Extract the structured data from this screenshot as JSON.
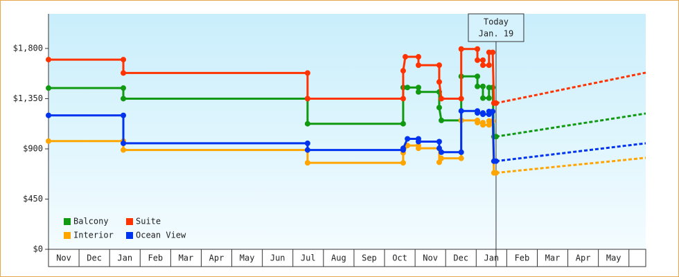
{
  "chart_data": {
    "type": "line",
    "xlim": [
      0,
      19.55
    ],
    "ylim": [
      0,
      2110
    ],
    "yticks": [
      {
        "value": 0,
        "label": "$0"
      },
      {
        "value": 450,
        "label": "$450"
      },
      {
        "value": 900,
        "label": "$900"
      },
      {
        "value": 1350,
        "label": "$1,350"
      },
      {
        "value": 1800,
        "label": "$1,800"
      }
    ],
    "xticks": [
      {
        "value": 0.5,
        "label": "Nov"
      },
      {
        "value": 1.5,
        "label": "Dec"
      },
      {
        "value": 2.5,
        "label": "Jan"
      },
      {
        "value": 3.5,
        "label": "Feb"
      },
      {
        "value": 4.5,
        "label": "Mar"
      },
      {
        "value": 5.5,
        "label": "Apr"
      },
      {
        "value": 6.5,
        "label": "May"
      },
      {
        "value": 7.5,
        "label": "Jun"
      },
      {
        "value": 8.5,
        "label": "Jul"
      },
      {
        "value": 9.5,
        "label": "Aug"
      },
      {
        "value": 10.5,
        "label": "Sep"
      },
      {
        "value": 11.5,
        "label": "Oct"
      },
      {
        "value": 12.5,
        "label": "Nov"
      },
      {
        "value": 13.5,
        "label": "Dec"
      },
      {
        "value": 14.5,
        "label": "Jan"
      },
      {
        "value": 15.5,
        "label": "Feb"
      },
      {
        "value": 16.5,
        "label": "Mar"
      },
      {
        "value": 17.5,
        "label": "Apr"
      },
      {
        "value": 18.5,
        "label": "May"
      }
    ],
    "annotation": {
      "x": 14.65,
      "lines": [
        "Today",
        "Jan. 19"
      ]
    },
    "legend": "lower left",
    "series": [
      {
        "name": "Balcony",
        "color": "#119911",
        "x": [
          0,
          2.45,
          2.45,
          8.48,
          8.48,
          11.61,
          11.61,
          11.75,
          12.11,
          12.11,
          12.79,
          12.79,
          12.86,
          13.51,
          13.51,
          14.04,
          14.04,
          14.22,
          14.22,
          14.42,
          14.42,
          14.54,
          14.58,
          14.65
        ],
        "values": [
          1445,
          1445,
          1350,
          1350,
          1125,
          1125,
          1450,
          1450,
          1450,
          1410,
          1410,
          1270,
          1155,
          1155,
          1550,
          1550,
          1460,
          1460,
          1355,
          1355,
          1450,
          1450,
          1010,
          1010
        ],
        "forecast_x": [
          14.65,
          15.88,
          17.1,
          18.33,
          19.55
        ],
        "forecast_values": [
          1010,
          1062,
          1114,
          1165,
          1217
        ]
      },
      {
        "name": "Suite",
        "color": "#ff3300",
        "x": [
          0,
          2.45,
          2.45,
          8.48,
          8.48,
          11.61,
          11.61,
          11.68,
          12.11,
          12.11,
          12.79,
          12.79,
          12.86,
          13.51,
          13.51,
          14.04,
          14.04,
          14.22,
          14.22,
          14.42,
          14.42,
          14.54,
          14.58,
          14.65
        ],
        "values": [
          1700,
          1700,
          1580,
          1580,
          1350,
          1350,
          1600,
          1725,
          1725,
          1650,
          1650,
          1500,
          1350,
          1350,
          1795,
          1795,
          1695,
          1695,
          1650,
          1650,
          1765,
          1765,
          1310,
          1310
        ],
        "forecast_x": [
          14.65,
          15.88,
          17.1,
          18.33,
          19.55
        ],
        "forecast_values": [
          1310,
          1378,
          1447,
          1515,
          1583
        ]
      },
      {
        "name": "Interior",
        "color": "#ffa500",
        "x": [
          0,
          2.45,
          2.45,
          8.48,
          8.48,
          11.61,
          11.61,
          11.75,
          12.11,
          12.11,
          12.79,
          12.79,
          12.86,
          13.51,
          13.51,
          14.04,
          14.04,
          14.22,
          14.22,
          14.42,
          14.42,
          14.54,
          14.58,
          14.65
        ],
        "values": [
          970,
          970,
          890,
          890,
          775,
          775,
          865,
          930,
          930,
          905,
          905,
          780,
          815,
          815,
          1155,
          1155,
          1135,
          1135,
          1115,
          1115,
          1150,
          1150,
          685,
          685
        ],
        "forecast_x": [
          14.65,
          15.88,
          17.1,
          18.33,
          19.55
        ],
        "forecast_values": [
          685,
          719,
          753,
          786,
          820
        ]
      },
      {
        "name": "Ocean View",
        "color": "#0033ee",
        "x": [
          0,
          2.45,
          2.45,
          8.48,
          8.48,
          11.61,
          11.61,
          11.75,
          12.11,
          12.11,
          12.79,
          12.79,
          12.86,
          13.51,
          13.51,
          14.04,
          14.04,
          14.22,
          14.22,
          14.42,
          14.42,
          14.54,
          14.58,
          14.65
        ],
        "values": [
          1200,
          1200,
          950,
          950,
          890,
          890,
          905,
          990,
          990,
          965,
          965,
          905,
          870,
          870,
          1240,
          1240,
          1222,
          1222,
          1210,
          1210,
          1235,
          1235,
          790,
          790
        ],
        "forecast_x": [
          14.65,
          15.88,
          17.1,
          18.33,
          19.55
        ],
        "forecast_values": [
          790,
          830,
          870,
          910,
          950
        ]
      }
    ]
  }
}
